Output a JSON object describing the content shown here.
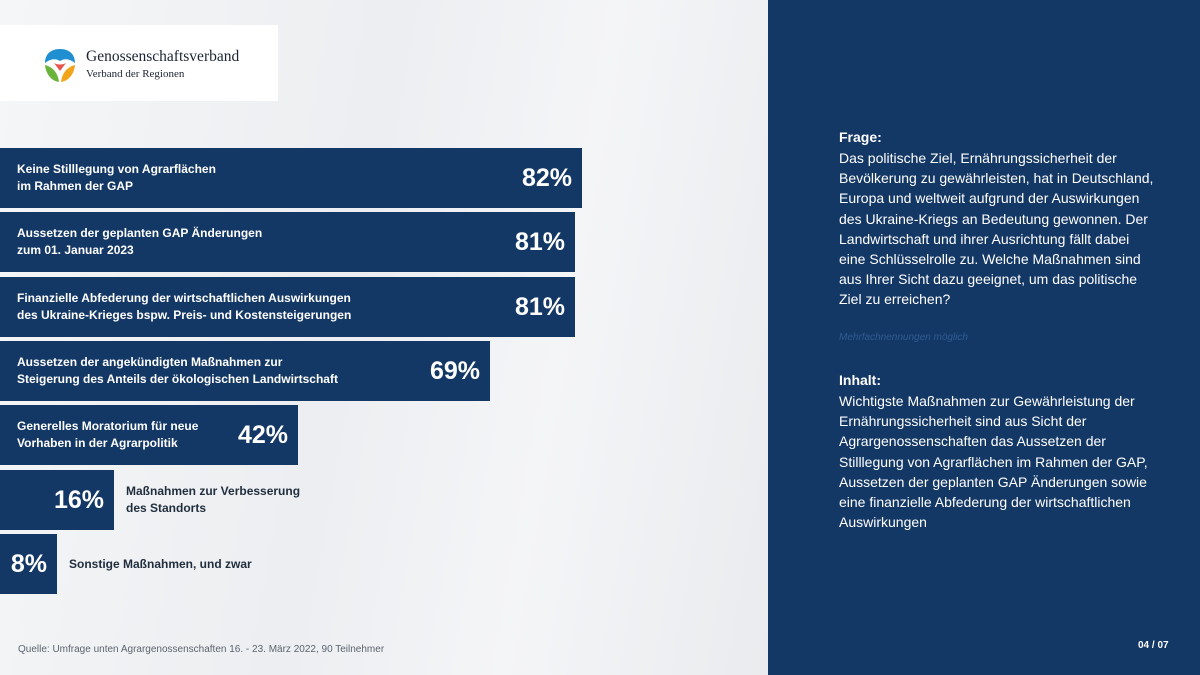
{
  "logo": {
    "title": "Genossenschaftsverband",
    "subtitle": "Verband der Regionen"
  },
  "chart_data": {
    "type": "bar",
    "orientation": "horizontal",
    "unit": "%",
    "xlim": [
      0,
      100
    ],
    "categories": [
      "Keine Stilllegung von Agrarflächen\nim Rahmen der GAP",
      "Aussetzen  der geplanten GAP Änderungen\nzum 01. Januar 2023",
      "Finanzielle Abfederung der wirtschaftlichen Auswirkungen\ndes Ukraine-Krieges bspw. Preis- und Kostensteigerungen",
      "Aussetzen  der angekündigten Maßnahmen zur\nSteigerung des Anteils der ökologischen Landwirtschaft",
      "Generelles Moratorium für neue\nVorhaben in der Agrarpolitik",
      "Maßnahmen zur Verbesserung\ndes Standorts",
      "Sonstige Maßnahmen, und zwar"
    ],
    "values": [
      82,
      81,
      81,
      69,
      42,
      16,
      8
    ],
    "value_labels": [
      "82%",
      "81%",
      "81%",
      "69%",
      "42%",
      "16%",
      "8%"
    ],
    "bar_color": "#143866",
    "source": "Quelle: Umfrage unten Agrargenossenschaften 16. - 23. März 2022, 90 Teilnehmer"
  },
  "panel": {
    "frage_heading": "Frage:",
    "frage_text": "Das politische Ziel, Ernährungssicherheit der Bevölkerung zu gewährleisten, hat in Deutschland, Europa und weltweit aufgrund der Auswirkungen des Ukraine-Kriegs an Bedeutung gewonnen. Der Landwirtschaft und ihrer Ausrichtung fällt dabei eine Schlüsselrolle zu. Welche Maßnahmen sind aus Ihrer Sicht dazu geeignet, um das politische Ziel zu erreichen?",
    "note": "Mehrfachnennungen möglich",
    "inhalt_heading": "Inhalt:",
    "inhalt_text": "Wichtigste Maßnahmen zur Gewährleistung der Ernährungssicherheit sind aus Sicht der Agrargenossenschaften das Aussetzen der Stilllegung von Agrarflächen im Rahmen der GAP, Aussetzen der geplanten GAP Änderungen sowie eine finanzielle Abfederung der wirtschaftlichen Auswirkungen",
    "page": "04 / 07"
  }
}
